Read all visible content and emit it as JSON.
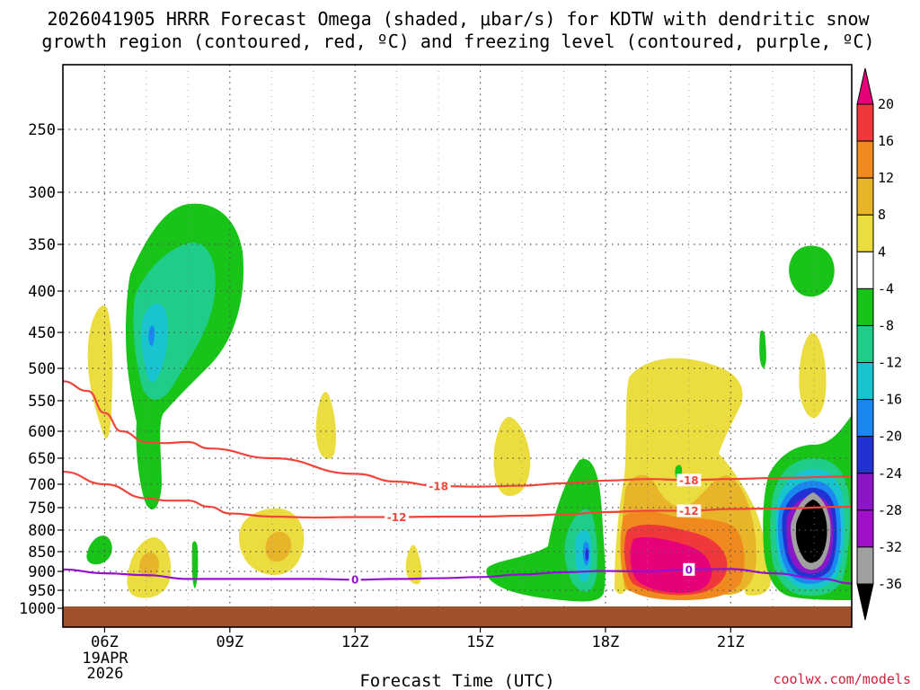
{
  "chart_data": {
    "type": "contour",
    "title_line1": "2026041905 HRRR Forecast Omega (shaded, μbar/s) for KDTW with dendritic snow",
    "title_line2": "growth region (contoured, red, ºC) and freezing level (contoured, purple, ºC)",
    "xlabel": "Forecast Time (UTC)",
    "credit": "coolwx.com/models",
    "date_label": [
      "19APR",
      "2026"
    ],
    "x_range_hours": [
      5,
      23.9
    ],
    "x_ticks": [
      {
        "hour": 6,
        "label": "06Z"
      },
      {
        "hour": 9,
        "label": "09Z"
      },
      {
        "hour": 12,
        "label": "12Z"
      },
      {
        "hour": 15,
        "label": "15Z"
      },
      {
        "hour": 18,
        "label": "18Z"
      },
      {
        "hour": 21,
        "label": "21Z"
      }
    ],
    "y_ticks": [
      {
        "p": 250,
        "label": "250"
      },
      {
        "p": 300,
        "label": "300"
      },
      {
        "p": 350,
        "label": "350"
      },
      {
        "p": 400,
        "label": "400"
      },
      {
        "p": 450,
        "label": "450"
      },
      {
        "p": 500,
        "label": "500"
      },
      {
        "p": 550,
        "label": "550"
      },
      {
        "p": 600,
        "label": "600"
      },
      {
        "p": 650,
        "label": "650"
      },
      {
        "p": 700,
        "label": "700"
      },
      {
        "p": 750,
        "label": "750"
      },
      {
        "p": 800,
        "label": "800"
      },
      {
        "p": 850,
        "label": "850"
      },
      {
        "p": 900,
        "label": "900"
      },
      {
        "p": 950,
        "label": "950"
      },
      {
        "p": 1000,
        "label": "1000"
      }
    ],
    "colorbar": {
      "levels": [
        {
          "value": 20,
          "label": "20"
        },
        {
          "value": 16,
          "label": "16"
        },
        {
          "value": 12,
          "label": "12"
        },
        {
          "value": 8,
          "label": "8"
        },
        {
          "value": 4,
          "label": "4"
        },
        {
          "value": -4,
          "label": "-4"
        },
        {
          "value": -8,
          "label": "-8"
        },
        {
          "value": -12,
          "label": "-12"
        },
        {
          "value": -16,
          "label": "-16"
        },
        {
          "value": -20,
          "label": "-20"
        },
        {
          "value": -24,
          "label": "-24"
        },
        {
          "value": -28,
          "label": "-28"
        },
        {
          "value": -32,
          "label": "-32"
        },
        {
          "value": -36,
          "label": "-36"
        }
      ],
      "colors": [
        "#e6007a",
        "#f0383c",
        "#f08a1e",
        "#e8b42a",
        "#ebdc40",
        "#ffffff",
        "#18c418",
        "#1fcc88",
        "#17c4d0",
        "#1a88f0",
        "#2232d2",
        "#8a16c8",
        "#a010c8",
        "#a0a0a0",
        "#000000"
      ]
    },
    "contours": [
      {
        "name": "dgz-top-minus18",
        "color": "#f0453a",
        "label": "-18",
        "points": [
          [
            5,
            520
          ],
          [
            5.6,
            535
          ],
          [
            6,
            570
          ],
          [
            6.4,
            600
          ],
          [
            7,
            620
          ],
          [
            7.4,
            622
          ],
          [
            8,
            620
          ],
          [
            8.5,
            632
          ],
          [
            10,
            650
          ],
          [
            12,
            680
          ],
          [
            13,
            695
          ],
          [
            14,
            704
          ],
          [
            15,
            705
          ],
          [
            16,
            703
          ],
          [
            17,
            698
          ],
          [
            18,
            693
          ],
          [
            19,
            690
          ],
          [
            20,
            692
          ],
          [
            21,
            690
          ],
          [
            22,
            688
          ],
          [
            23.9,
            685
          ]
        ],
        "label_at": [
          [
            14,
            704
          ],
          [
            20,
            692
          ]
        ]
      },
      {
        "name": "dgz-bottom-minus12",
        "color": "#f0453a",
        "label": "-12",
        "points": [
          [
            5,
            676
          ],
          [
            6,
            700
          ],
          [
            7,
            730
          ],
          [
            7.5,
            735
          ],
          [
            8,
            735
          ],
          [
            8.5,
            748
          ],
          [
            9,
            763
          ],
          [
            10,
            770
          ],
          [
            11,
            772
          ],
          [
            12,
            771
          ],
          [
            13,
            771
          ],
          [
            14,
            770
          ],
          [
            15,
            770
          ],
          [
            16,
            768
          ],
          [
            17,
            765
          ],
          [
            18,
            760
          ],
          [
            19,
            757
          ],
          [
            20,
            757
          ],
          [
            21,
            753
          ],
          [
            22,
            752
          ],
          [
            23.9,
            748
          ]
        ],
        "label_at": [
          [
            13,
            771
          ],
          [
            20,
            757
          ]
        ]
      },
      {
        "name": "freezing-level-0",
        "color": "#9410d0",
        "label": "0",
        "points": [
          [
            5,
            895
          ],
          [
            6,
            905
          ],
          [
            7,
            910
          ],
          [
            8,
            920
          ],
          [
            9,
            920
          ],
          [
            10,
            920
          ],
          [
            11,
            920
          ],
          [
            12,
            922
          ],
          [
            13,
            920
          ],
          [
            14,
            918
          ],
          [
            15,
            915
          ],
          [
            16,
            908
          ],
          [
            17,
            902
          ],
          [
            18,
            899
          ],
          [
            19,
            900
          ],
          [
            20,
            895
          ],
          [
            21,
            894
          ],
          [
            22,
            905
          ],
          [
            23.2,
            920
          ],
          [
            23.9,
            932
          ]
        ],
        "label_at": [
          [
            12,
            922
          ],
          [
            20,
            895
          ]
        ]
      }
    ]
  }
}
